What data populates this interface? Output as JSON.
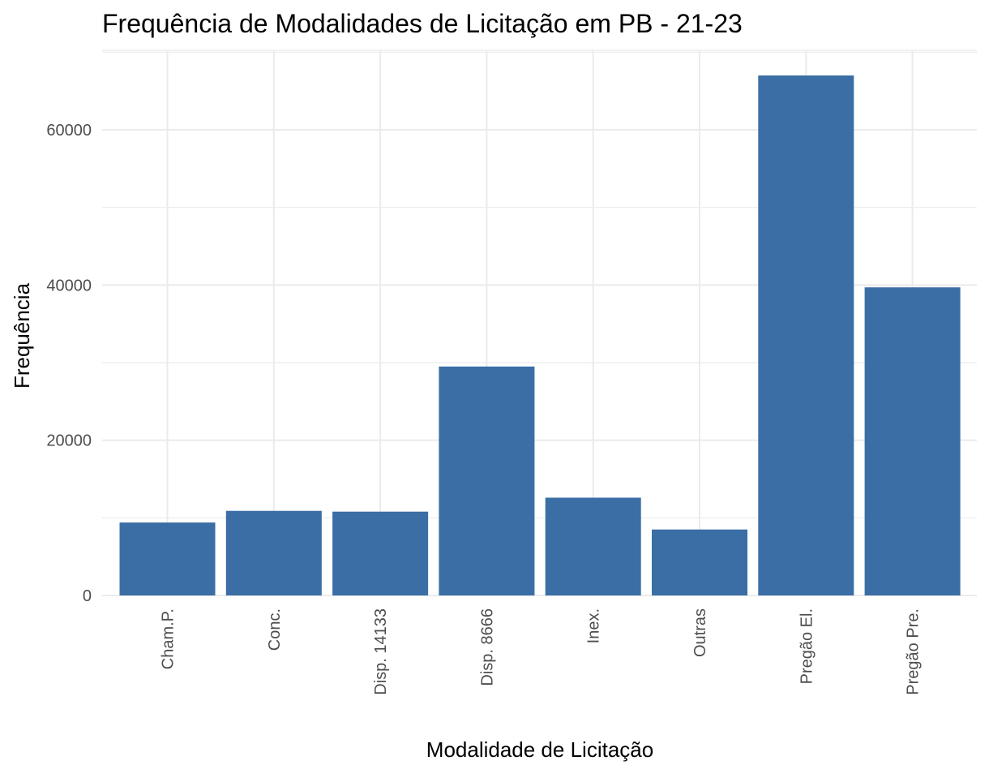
{
  "chart_data": {
    "type": "bar",
    "title": "Frequência de Modalidades de Licitação em PB - 21-23",
    "xlabel": "Modalidade de Licitação",
    "ylabel": "Frequência",
    "categories": [
      "Cham.P.",
      "Conc.",
      "Disp. 14133",
      "Disp. 8666",
      "Inex.",
      "Outras",
      "Pregão El.",
      "Pregão Pre."
    ],
    "values": [
      9400,
      10900,
      10800,
      29500,
      12600,
      8500,
      67000,
      39700
    ],
    "ylim": [
      0,
      70000
    ],
    "yticks": [
      0,
      20000,
      40000,
      60000
    ],
    "ytick_labels": [
      "0",
      "20000",
      "40000",
      "60000"
    ],
    "grid": true,
    "bar_color": "#3A6EA5",
    "grid_color": "#EBEBEB"
  }
}
